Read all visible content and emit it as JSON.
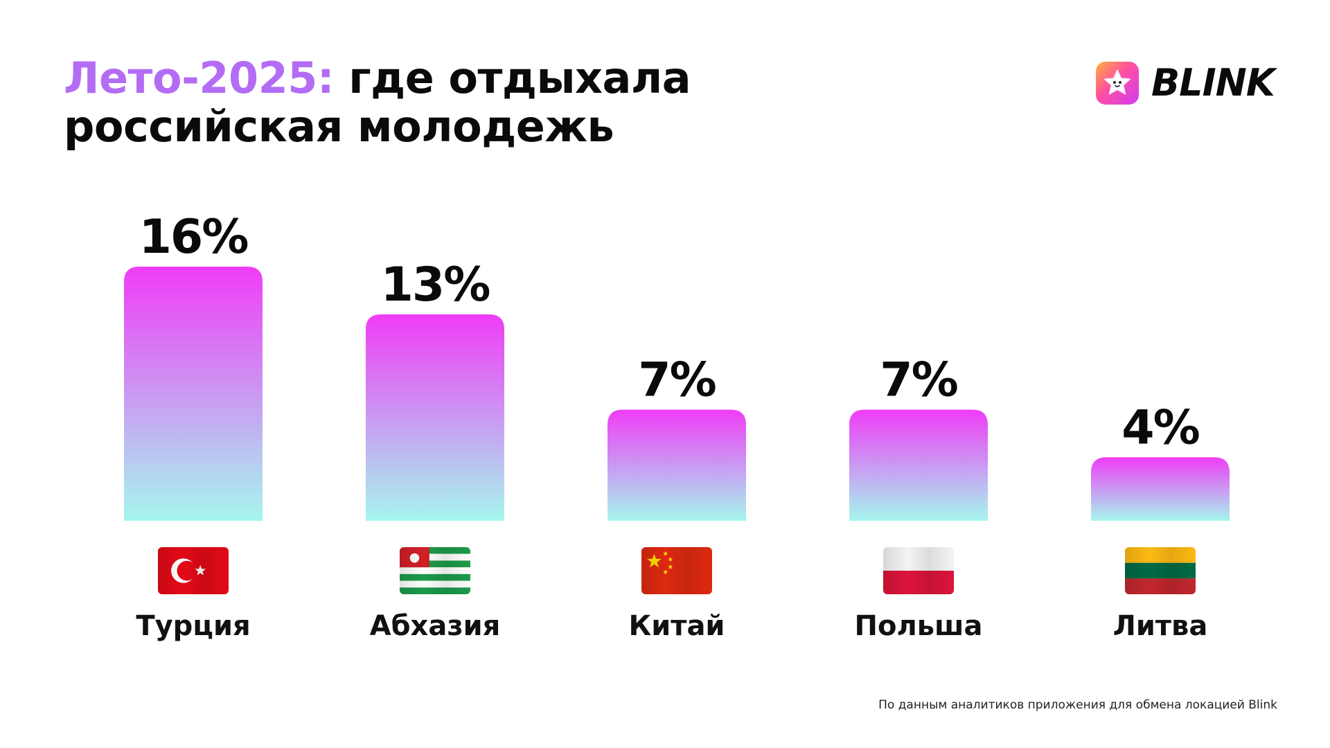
{
  "title": {
    "accent": "Лето-2025:",
    "rest_line1": " где отдыхала",
    "line2": "российская молодежь"
  },
  "logo": {
    "text": "BLINK",
    "icon": "star-face-icon"
  },
  "chart_data": {
    "type": "bar",
    "categories": [
      "Турция",
      "Абхазия",
      "Китай",
      "Польша",
      "Литва"
    ],
    "values": [
      16,
      13,
      7,
      7,
      4
    ],
    "value_labels": [
      "16%",
      "13%",
      "7%",
      "7%",
      "4%"
    ],
    "flags": [
      "turkey-flag-icon",
      "abkhazia-flag-icon",
      "china-flag-icon",
      "poland-flag-icon",
      "lithuania-flag-icon"
    ],
    "title": "",
    "xlabel": "",
    "ylabel": "",
    "ylim": [
      0,
      16
    ],
    "grid": false,
    "legend": "none",
    "colors": {
      "bar_top": "#ef3cf6",
      "bar_bottom": "#a6f6ee",
      "accent": "#b36cf4"
    }
  },
  "source": "По данным аналитиков приложения для обмена локацией Blink"
}
